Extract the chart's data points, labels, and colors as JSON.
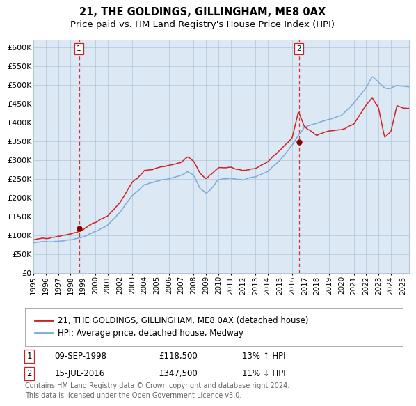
{
  "title": "21, THE GOLDINGS, GILLINGHAM, ME8 0AX",
  "subtitle": "Price paid vs. HM Land Registry's House Price Index (HPI)",
  "background_color": "#dce9f5",
  "plot_bg_color": "#dce9f5",
  "fig_bg_color": "#ffffff",
  "hpi_line_color": "#7aabdb",
  "price_line_color": "#cc2222",
  "marker_color": "#880000",
  "dashed_line_color": "#cc3333",
  "ylim": [
    0,
    620000
  ],
  "yticks": [
    0,
    50000,
    100000,
    150000,
    200000,
    250000,
    300000,
    350000,
    400000,
    450000,
    500000,
    550000,
    600000
  ],
  "ytick_labels": [
    "£0",
    "£50K",
    "£100K",
    "£150K",
    "£200K",
    "£250K",
    "£300K",
    "£350K",
    "£400K",
    "£450K",
    "£500K",
    "£550K",
    "£600K"
  ],
  "sale1_date": 1998.69,
  "sale1_price": 118500,
  "sale1_label": "1",
  "sale2_date": 2016.54,
  "sale2_price": 347500,
  "sale2_label": "2",
  "legend_label1": "21, THE GOLDINGS, GILLINGHAM, ME8 0AX (detached house)",
  "legend_label2": "HPI: Average price, detached house, Medway",
  "table_row1": [
    "1",
    "09-SEP-1998",
    "£118,500",
    "13% ↑ HPI"
  ],
  "table_row2": [
    "2",
    "15-JUL-2016",
    "£347,500",
    "11% ↓ HPI"
  ],
  "footer": "Contains HM Land Registry data © Crown copyright and database right 2024.\nThis data is licensed under the Open Government Licence v3.0.",
  "title_fontsize": 10.5,
  "subtitle_fontsize": 9.5,
  "tick_fontsize": 8,
  "legend_fontsize": 8.5,
  "table_fontsize": 8.5,
  "footer_fontsize": 7,
  "grid_color": "#b0c4d8",
  "xstart": 1995.0,
  "xend": 2025.5
}
